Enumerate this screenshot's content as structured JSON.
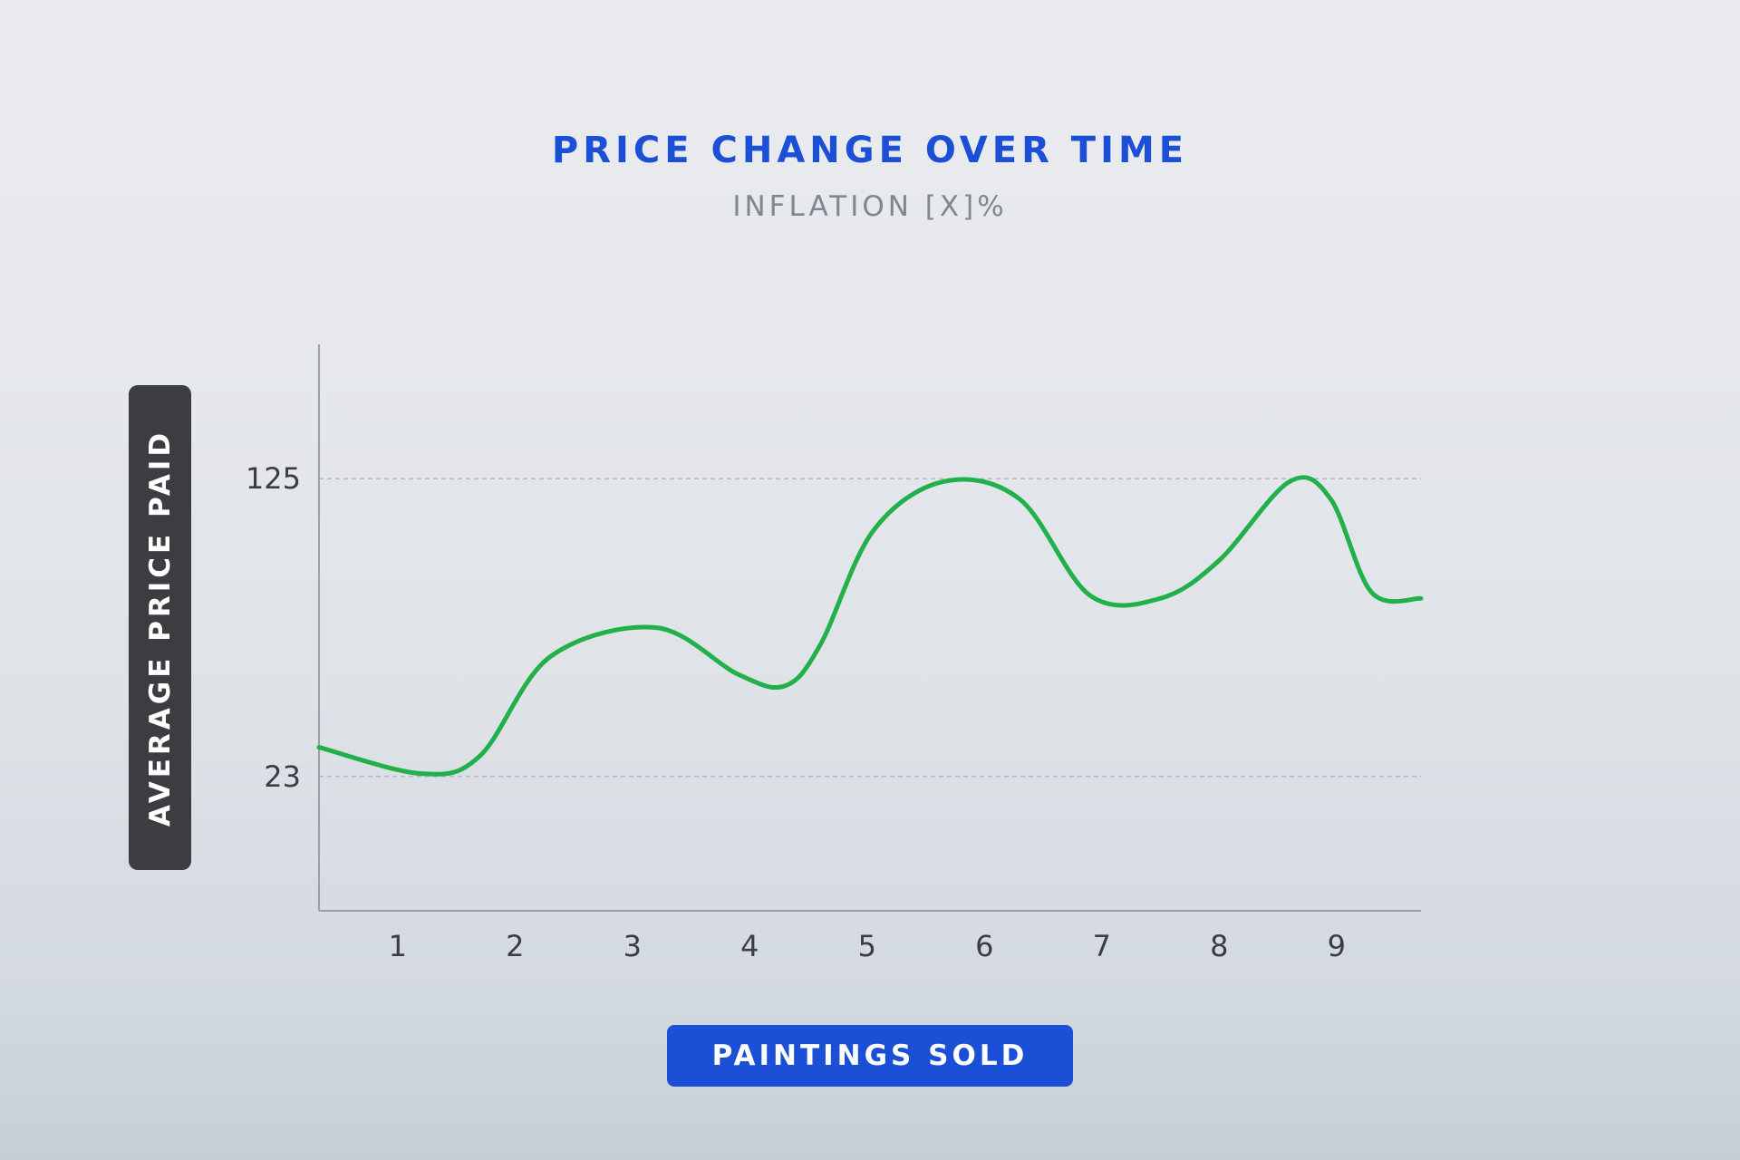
{
  "title": "PRICE CHANGE OVER TIME",
  "subtitle": "INFLATION [X]%",
  "chart_data": {
    "type": "line",
    "title": "PRICE CHANGE OVER TIME",
    "subtitle": "INFLATION [X]%",
    "xlabel": "PAINTINGS SOLD",
    "ylabel": "AVERAGE PRICE PAID",
    "x_ticks": [
      "1",
      "2",
      "3",
      "4",
      "5",
      "6",
      "7",
      "8",
      "9"
    ],
    "y_ticks": [
      {
        "value": 23,
        "label": "23"
      },
      {
        "value": 125,
        "label": "125"
      }
    ],
    "xlim": [
      0.33,
      9.72
    ],
    "ylim": [
      -23,
      171
    ],
    "grid": "horizontal dashed at labeled ticks",
    "series": [
      {
        "color": "#22b04b",
        "x": [
          0.33,
          1.2,
          1.7,
          2.3,
          3.2,
          3.9,
          4.3,
          4.6,
          5.05,
          5.65,
          6.3,
          6.9,
          7.5,
          8.0,
          8.6,
          8.95,
          9.3,
          9.72
        ],
        "y": [
          33,
          24,
          30,
          64,
          74,
          58,
          54,
          68,
          107,
          124,
          118,
          85,
          84,
          97,
          124,
          118,
          86,
          84
        ]
      }
    ]
  },
  "colors": {
    "accent": "#1a4fd6",
    "line": "#22b04b",
    "ylabel_bg": "#3b3d40",
    "axis": "#9aa0a8",
    "grid": "#b3b9c3"
  }
}
